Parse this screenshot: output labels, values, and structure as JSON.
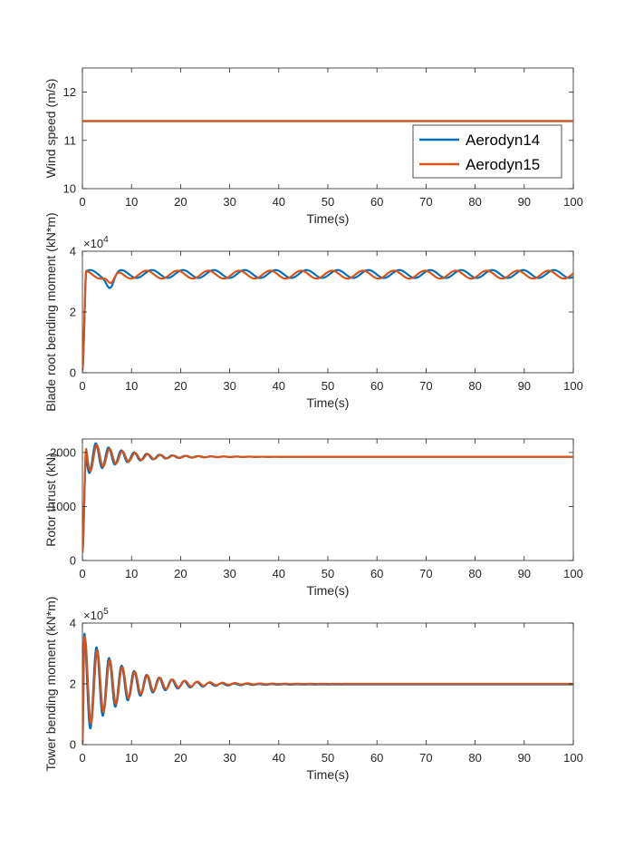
{
  "colors": {
    "Aerodyn14": "#0072BD",
    "Aerodyn15": "#D95319"
  },
  "chart_data": [
    {
      "type": "line",
      "xlabel": "Time(s)",
      "ylabel": "Wind speed (m/s)",
      "xlim": [
        0,
        100
      ],
      "ylim": [
        10,
        12.5
      ],
      "xticks": [
        "0",
        "10",
        "20",
        "30",
        "40",
        "50",
        "60",
        "70",
        "80",
        "90",
        "100"
      ],
      "yticks": [
        "10",
        "11",
        "12"
      ],
      "ytick_values": [
        10,
        11,
        12
      ],
      "exponent": "",
      "legend": {
        "placement": "right",
        "entries": [
          "Aerodyn14",
          "Aerodyn15"
        ]
      },
      "series": [
        {
          "name": "Aerodyn14",
          "model": "constant",
          "value": 11.4
        },
        {
          "name": "Aerodyn15",
          "model": "constant",
          "value": 11.4
        }
      ]
    },
    {
      "type": "line",
      "xlabel": "Time(s)",
      "ylabel": "Blade root bending moment (kN*m)",
      "xlim": [
        0,
        100
      ],
      "ylim": [
        0,
        40000
      ],
      "xticks": [
        "0",
        "10",
        "20",
        "30",
        "40",
        "50",
        "60",
        "70",
        "80",
        "90",
        "100"
      ],
      "yticks": [
        "0",
        "2",
        "4"
      ],
      "ytick_values": [
        0,
        20000,
        40000
      ],
      "exponent": "4",
      "series": [
        {
          "name": "Aerodyn14",
          "model": "periodic",
          "start": 1000,
          "rise_time": 0.8,
          "mean": 32500,
          "amplitude": 1300,
          "period": 6.3,
          "phase": 0,
          "early_dip": {
            "t": 5.7,
            "depth": 3800,
            "width": 1.0
          }
        },
        {
          "name": "Aerodyn15",
          "model": "periodic",
          "start": 1000,
          "rise_time": 0.8,
          "mean": 32300,
          "amplitude": 1300,
          "period": 6.3,
          "phase": 1.1,
          "early_dip": {
            "t": 5.9,
            "depth": 3500,
            "width": 1.0
          }
        }
      ]
    },
    {
      "type": "line",
      "xlabel": "Time(s)",
      "ylabel": "Rotor thrust (kN)",
      "xlim": [
        0,
        100
      ],
      "ylim": [
        0,
        2250
      ],
      "xticks": [
        "0",
        "10",
        "20",
        "30",
        "40",
        "50",
        "60",
        "70",
        "80",
        "90",
        "100"
      ],
      "yticks": [
        "0",
        "1000",
        "2000"
      ],
      "ytick_values": [
        0,
        1000,
        2000
      ],
      "exponent": "",
      "series": [
        {
          "name": "Aerodyn14",
          "model": "damped",
          "start": 150,
          "rise_time": 0.8,
          "mean": 1920,
          "amplitude": 370,
          "period": 2.6,
          "decay": 7.0,
          "phase": 0.15
        },
        {
          "name": "Aerodyn15",
          "model": "damped",
          "start": 150,
          "rise_time": 0.8,
          "mean": 1920,
          "amplitude": 330,
          "period": 2.6,
          "decay": 7.0,
          "phase": 0.35
        }
      ]
    },
    {
      "type": "line",
      "xlabel": "Time(s)",
      "ylabel": "Tower bending moment (kN*m)",
      "xlim": [
        0,
        100
      ],
      "ylim": [
        0,
        400000
      ],
      "xticks": [
        "0",
        "10",
        "20",
        "30",
        "40",
        "50",
        "60",
        "70",
        "80",
        "90",
        "100"
      ],
      "yticks": [
        "0",
        "2",
        "4"
      ],
      "ytick_values": [
        0,
        200000,
        400000
      ],
      "exponent": "5",
      "series": [
        {
          "name": "Aerodyn14",
          "model": "damped",
          "start": 5000,
          "rise_time": 0.4,
          "mean": 198000,
          "amplitude": 180000,
          "period": 2.55,
          "decay": 7.5,
          "phase": 0.35
        },
        {
          "name": "Aerodyn15",
          "model": "damped",
          "start": 5000,
          "rise_time": 0.4,
          "mean": 200000,
          "amplitude": 165000,
          "period": 2.55,
          "decay": 7.5,
          "phase": 0.5
        }
      ]
    }
  ]
}
